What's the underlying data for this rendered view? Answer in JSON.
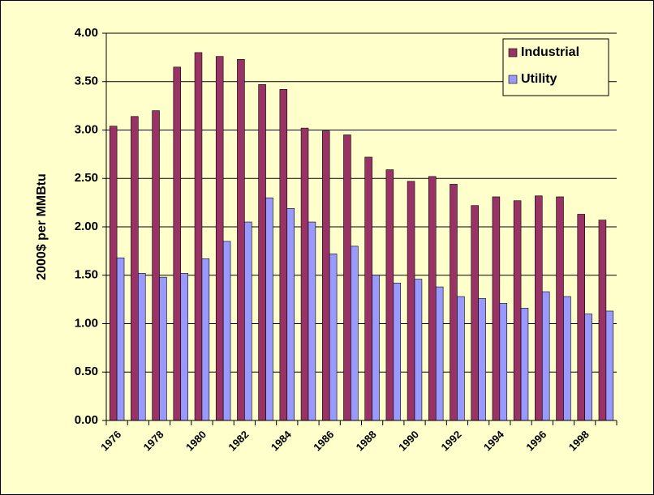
{
  "chart_data": {
    "type": "bar",
    "y_label": "2000$ per MMBtu",
    "categories": [
      "1976",
      null,
      "1978",
      null,
      "1980",
      null,
      "1982",
      null,
      "1984",
      null,
      "1986",
      null,
      "1988",
      null,
      "1990",
      null,
      "1992",
      null,
      "1994",
      null,
      "1996",
      null,
      "1998",
      null
    ],
    "series": [
      {
        "name": "Industrial",
        "color": "#993366",
        "values": [
          3.04,
          3.14,
          3.2,
          3.65,
          3.8,
          3.76,
          3.73,
          3.47,
          3.42,
          3.02,
          2.99,
          2.95,
          2.72,
          2.59,
          2.47,
          2.52,
          2.44,
          2.22,
          2.31,
          2.27,
          2.32,
          2.31,
          2.13,
          2.07
        ]
      },
      {
        "name": "Utility",
        "color": "#9999ff",
        "values": [
          1.68,
          1.52,
          1.48,
          1.52,
          1.67,
          1.85,
          2.05,
          2.3,
          2.19,
          2.05,
          1.72,
          1.8,
          1.5,
          1.42,
          1.46,
          1.38,
          1.28,
          1.26,
          1.21,
          1.16,
          1.33,
          1.28,
          1.1,
          1.13
        ]
      }
    ],
    "ylim": [
      0,
      4
    ],
    "yticks": [
      {
        "value": 0,
        "label": "0.00"
      },
      {
        "value": 0.5,
        "label": "0.50"
      },
      {
        "value": 1,
        "label": "1.00"
      },
      {
        "value": 1.5,
        "label": "1.50"
      },
      {
        "value": 2,
        "label": "2.00"
      },
      {
        "value": 2.5,
        "label": "2.50"
      },
      {
        "value": 3,
        "label": "3.00"
      },
      {
        "value": 3.5,
        "label": "3.50"
      },
      {
        "value": 4,
        "label": "4.00"
      }
    ],
    "grid": true,
    "legend": "top-right"
  }
}
